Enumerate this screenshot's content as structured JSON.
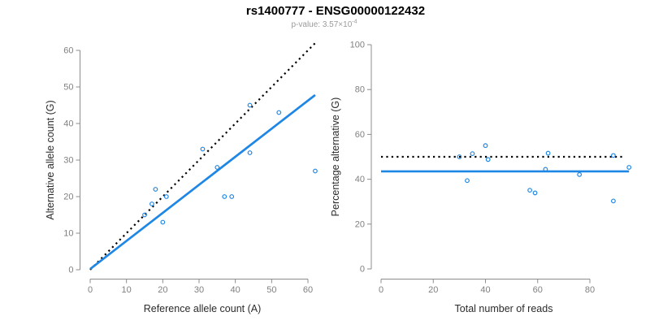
{
  "header": {
    "title": "rs1400777 - ENSG00000122432",
    "subtitle_prefix": "p-value: 3.57×10",
    "subtitle_exponent": "-4"
  },
  "colors": {
    "accent_blue": "#1E87E5",
    "line_black": "#000000",
    "axis_line": "#8c8c8c",
    "tick_label": "#808080",
    "axis_title": "#2b2b2b",
    "subtitle_gray": "#9a9a9a"
  },
  "chart_data": [
    {
      "type": "scatter",
      "title": "",
      "xlabel": "Reference allele count (A)",
      "ylabel": "Alternative allele count (G)",
      "xlim": [
        0,
        62
      ],
      "ylim": [
        0,
        62
      ],
      "xticks": [
        0,
        10,
        20,
        30,
        40,
        50,
        60
      ],
      "yticks": [
        0,
        10,
        20,
        30,
        40,
        50,
        60
      ],
      "grid": false,
      "legend": null,
      "points": [
        [
          15,
          15
        ],
        [
          17,
          18
        ],
        [
          18,
          22
        ],
        [
          20,
          13
        ],
        [
          21,
          20
        ],
        [
          31,
          33
        ],
        [
          35,
          28
        ],
        [
          37,
          20
        ],
        [
          39,
          20
        ],
        [
          44,
          32
        ],
        [
          44,
          45
        ],
        [
          52,
          43
        ],
        [
          62,
          27
        ]
      ],
      "lines": [
        {
          "name": "identity-line",
          "style": "dotted",
          "color": "black",
          "x1": 0,
          "y1": 0,
          "x2": 62,
          "y2": 62
        },
        {
          "name": "fit-line",
          "style": "solid",
          "color": "blue",
          "x1": 0,
          "y1": 0.2,
          "x2": 62,
          "y2": 47.8
        }
      ]
    },
    {
      "type": "scatter",
      "title": "",
      "xlabel": "Total number of reads",
      "ylabel": "Percentage alternative (G)",
      "xlim": [
        0,
        95
      ],
      "ylim": [
        0,
        100
      ],
      "xticks": [
        0,
        20,
        40,
        60,
        80
      ],
      "yticks": [
        0,
        20,
        40,
        60,
        80,
        100
      ],
      "grid": false,
      "legend": null,
      "points": [
        [
          30,
          50
        ],
        [
          33,
          39.4
        ],
        [
          35,
          51.4
        ],
        [
          40,
          55
        ],
        [
          41,
          48.8
        ],
        [
          57,
          35.1
        ],
        [
          59,
          33.9
        ],
        [
          63,
          44.4
        ],
        [
          64,
          51.6
        ],
        [
          76,
          42.1
        ],
        [
          89,
          30.3
        ],
        [
          89,
          50.6
        ],
        [
          95,
          45.3
        ]
      ],
      "lines": [
        {
          "name": "expected-50pct-line",
          "style": "dotted",
          "color": "black",
          "x1": 0,
          "y1": 50,
          "x2": 93,
          "y2": 50
        },
        {
          "name": "mean-pct-line",
          "style": "solid",
          "color": "blue",
          "x1": 0,
          "y1": 43.5,
          "x2": 95,
          "y2": 43.5
        }
      ]
    }
  ]
}
